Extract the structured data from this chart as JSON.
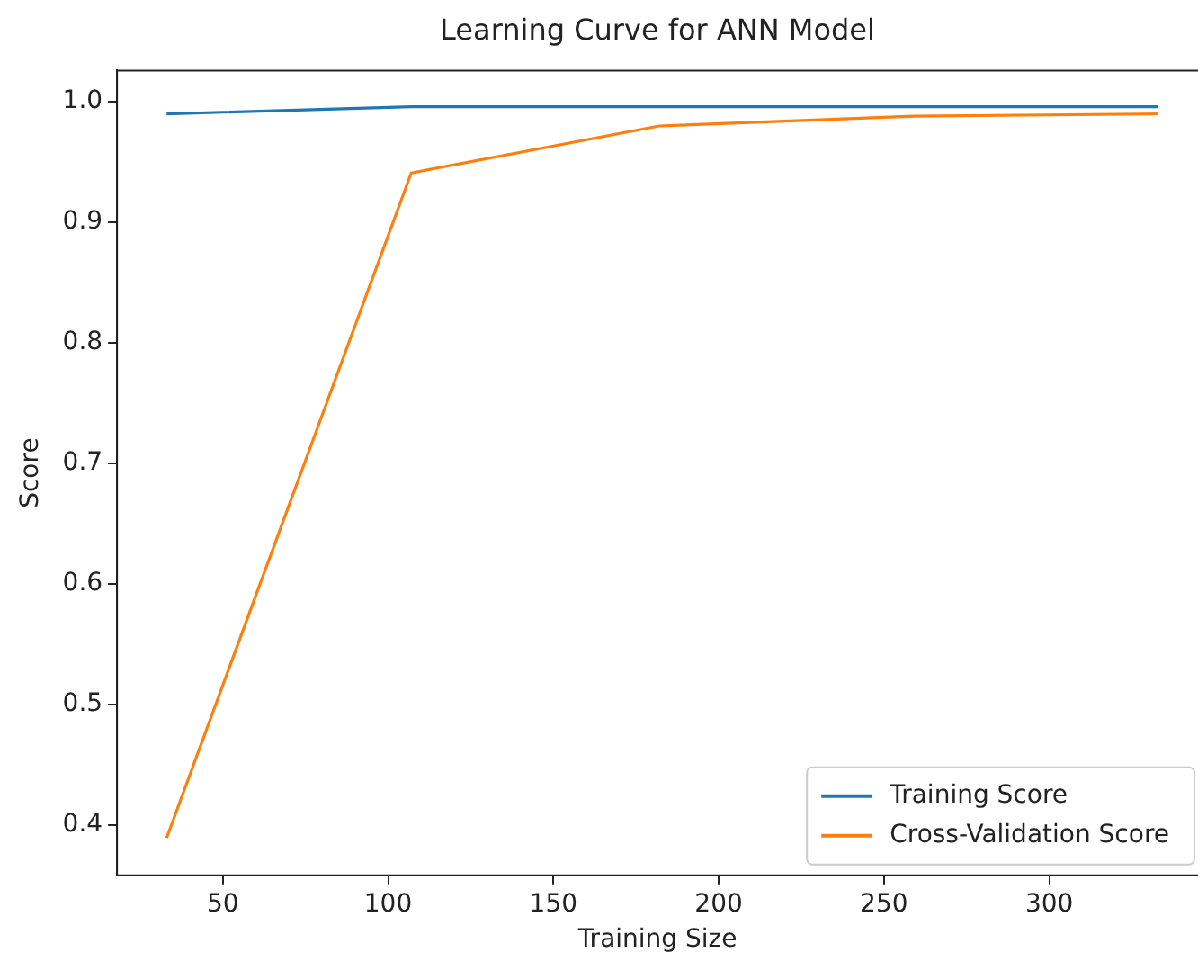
{
  "chart_data": {
    "type": "line",
    "title": "Learning Curve for ANN Model",
    "xlabel": "Training Size",
    "ylabel": "Score",
    "x": [
      33,
      107,
      182,
      257,
      333
    ],
    "series": [
      {
        "name": "Training Score",
        "color": "#1f77b4",
        "values": [
          0.99,
          0.996,
          0.996,
          0.996,
          0.996
        ]
      },
      {
        "name": "Cross-Validation Score",
        "color": "#ff7f0e",
        "values": [
          0.389,
          0.941,
          0.98,
          0.988,
          0.99
        ]
      }
    ],
    "xlim": [
      18,
      345
    ],
    "xticks": [
      50,
      100,
      150,
      200,
      250,
      300
    ],
    "ylim": [
      0.358,
      1.026
    ],
    "yticks": [
      {
        "value": 0.4,
        "label": "0.4"
      },
      {
        "value": 0.5,
        "label": "0.5"
      },
      {
        "value": 0.6,
        "label": "0.6"
      },
      {
        "value": 0.7,
        "label": "0.7"
      },
      {
        "value": 0.8,
        "label": "0.8"
      },
      {
        "value": 0.9,
        "label": "0.9"
      },
      {
        "value": 1.0,
        "label": "1.0"
      }
    ],
    "grid": false,
    "legend": "bottom right",
    "marker": "none",
    "line_style": "solid"
  }
}
